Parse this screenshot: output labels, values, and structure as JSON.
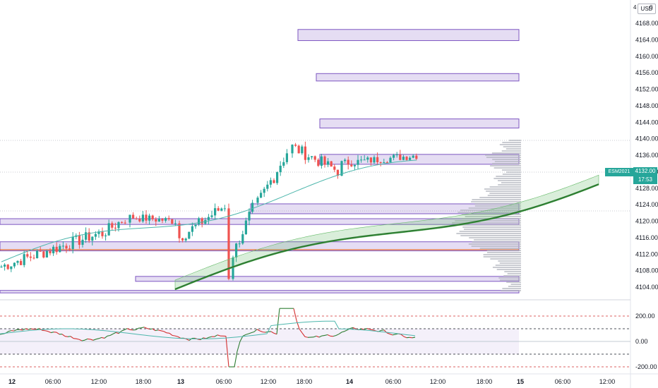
{
  "axis": {
    "currency": "USD",
    "price_ticks": [
      "4168.00",
      "4164.00",
      "4160.00",
      "4156.00",
      "4152.00",
      "4148.00",
      "4144.00",
      "4140.00",
      "4136.00",
      "4132.00",
      "4128.00",
      "4124.00",
      "4120.00",
      "4116.00",
      "4112.00",
      "4108.00",
      "4104.00"
    ],
    "osc_ticks": [
      "200.00",
      "0.00",
      "-200.00"
    ],
    "time_ticks": [
      "12",
      "06:00",
      "12:00",
      "18:00",
      "13",
      "06:00",
      "12:00",
      "18:00",
      "14",
      "06:00",
      "12:00",
      "18:00",
      "15",
      "06:00",
      "12:00"
    ]
  },
  "top_right": {
    "mark": "4",
    "zero": "0"
  },
  "price_label": {
    "symbol": "ESM2021",
    "price": "4132.00",
    "countdown": "17:53"
  },
  "colors": {
    "up": "#26a69a",
    "down": "#ef5350",
    "zone": "#7e57c2",
    "ma": "#2e7d32",
    "osc_up": "#2e7d32",
    "osc_down": "#d32f2f",
    "signal": "#4db6ac"
  }
}
